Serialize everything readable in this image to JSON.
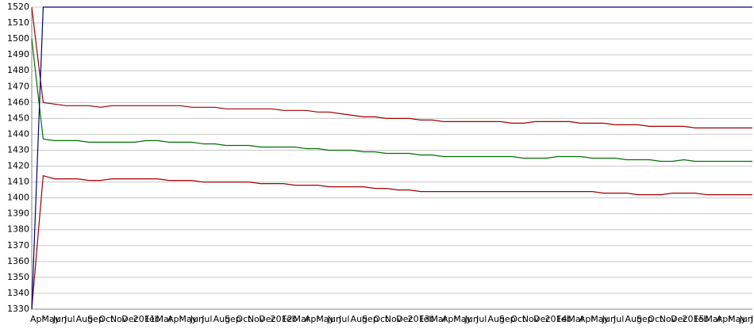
{
  "chart_data": {
    "type": "line",
    "categories": [
      "Apr",
      "May",
      "Jun",
      "Jul",
      "Aug",
      "Sep",
      "Oct",
      "Nov",
      "Dec",
      "2011",
      "Feb",
      "Mar",
      "Apr",
      "May",
      "Jun",
      "Jul",
      "Aug",
      "Sep",
      "Oct",
      "Nov",
      "Dec",
      "2012",
      "Feb",
      "Mar",
      "Apr",
      "May",
      "Jun",
      "Jul",
      "Aug",
      "Sep",
      "Oct",
      "Nov",
      "Dec",
      "2013",
      "Feb",
      "Mar",
      "Apr",
      "May",
      "Jun",
      "Jul",
      "Aug",
      "Sep",
      "Oct",
      "Nov",
      "Dec",
      "2014",
      "Feb",
      "Mar",
      "Apr",
      "May",
      "Jun",
      "Jul",
      "Aug",
      "Sep",
      "Oct",
      "Nov",
      "Dec",
      "2015",
      "Feb",
      "Mar",
      "Apr",
      "May",
      "Jun",
      "Jul"
    ],
    "series": [
      {
        "color": "#a00000",
        "values": [
          1520,
          1460,
          1459,
          1458,
          1458,
          1458,
          1457,
          1458,
          1458,
          1458,
          1458,
          1458,
          1458,
          1458,
          1457,
          1457,
          1457,
          1456,
          1456,
          1456,
          1456,
          1456,
          1455,
          1455,
          1455,
          1454,
          1454,
          1453,
          1452,
          1451,
          1451,
          1450,
          1450,
          1450,
          1449,
          1449,
          1448,
          1448,
          1448,
          1448,
          1448,
          1448,
          1447,
          1447,
          1448,
          1448,
          1448,
          1448,
          1447,
          1447,
          1447,
          1446,
          1446,
          1446,
          1445,
          1445,
          1445,
          1445,
          1444,
          1444,
          1444,
          1444,
          1444,
          1444
        ]
      },
      {
        "color": "#007000",
        "values": [
          1500,
          1437,
          1436,
          1436,
          1436,
          1435,
          1435,
          1435,
          1435,
          1435,
          1436,
          1436,
          1435,
          1435,
          1435,
          1434,
          1434,
          1433,
          1433,
          1433,
          1432,
          1432,
          1432,
          1432,
          1431,
          1431,
          1430,
          1430,
          1430,
          1429,
          1429,
          1428,
          1428,
          1428,
          1427,
          1427,
          1426,
          1426,
          1426,
          1426,
          1426,
          1426,
          1426,
          1425,
          1425,
          1425,
          1426,
          1426,
          1426,
          1425,
          1425,
          1425,
          1424,
          1424,
          1424,
          1423,
          1423,
          1424,
          1423,
          1423,
          1423,
          1423,
          1423,
          1423
        ]
      },
      {
        "color": "#a00000",
        "values": [
          1330,
          1414,
          1412,
          1412,
          1412,
          1411,
          1411,
          1412,
          1412,
          1412,
          1412,
          1412,
          1411,
          1411,
          1411,
          1410,
          1410,
          1410,
          1410,
          1410,
          1409,
          1409,
          1409,
          1408,
          1408,
          1408,
          1407,
          1407,
          1407,
          1407,
          1406,
          1406,
          1405,
          1405,
          1404,
          1404,
          1404,
          1404,
          1404,
          1404,
          1404,
          1404,
          1404,
          1404,
          1404,
          1404,
          1404,
          1404,
          1404,
          1404,
          1403,
          1403,
          1403,
          1402,
          1402,
          1402,
          1403,
          1403,
          1403,
          1402,
          1402,
          1402,
          1402,
          1402
        ]
      },
      {
        "color": "#000080",
        "values": [
          1330,
          1520,
          1520,
          1520,
          1520,
          1520,
          1520,
          1520,
          1520,
          1520,
          1520,
          1520,
          1520,
          1520,
          1520,
          1520,
          1520,
          1520,
          1520,
          1520,
          1520,
          1520,
          1520,
          1520,
          1520,
          1520,
          1520,
          1520,
          1520,
          1520,
          1520,
          1520,
          1520,
          1520,
          1520,
          1520,
          1520,
          1520,
          1520,
          1520,
          1520,
          1520,
          1520,
          1520,
          1520,
          1520,
          1520,
          1520,
          1520,
          1520,
          1520,
          1520,
          1520,
          1520,
          1520,
          1520,
          1520,
          1520,
          1520,
          1520,
          1520,
          1520,
          1520,
          1520
        ]
      }
    ],
    "ylim": [
      1330,
      1520
    ],
    "yticks": [
      1330,
      1340,
      1350,
      1360,
      1370,
      1380,
      1390,
      1400,
      1410,
      1420,
      1430,
      1440,
      1450,
      1460,
      1470,
      1480,
      1490,
      1500,
      1510,
      1520
    ],
    "grid": true
  }
}
